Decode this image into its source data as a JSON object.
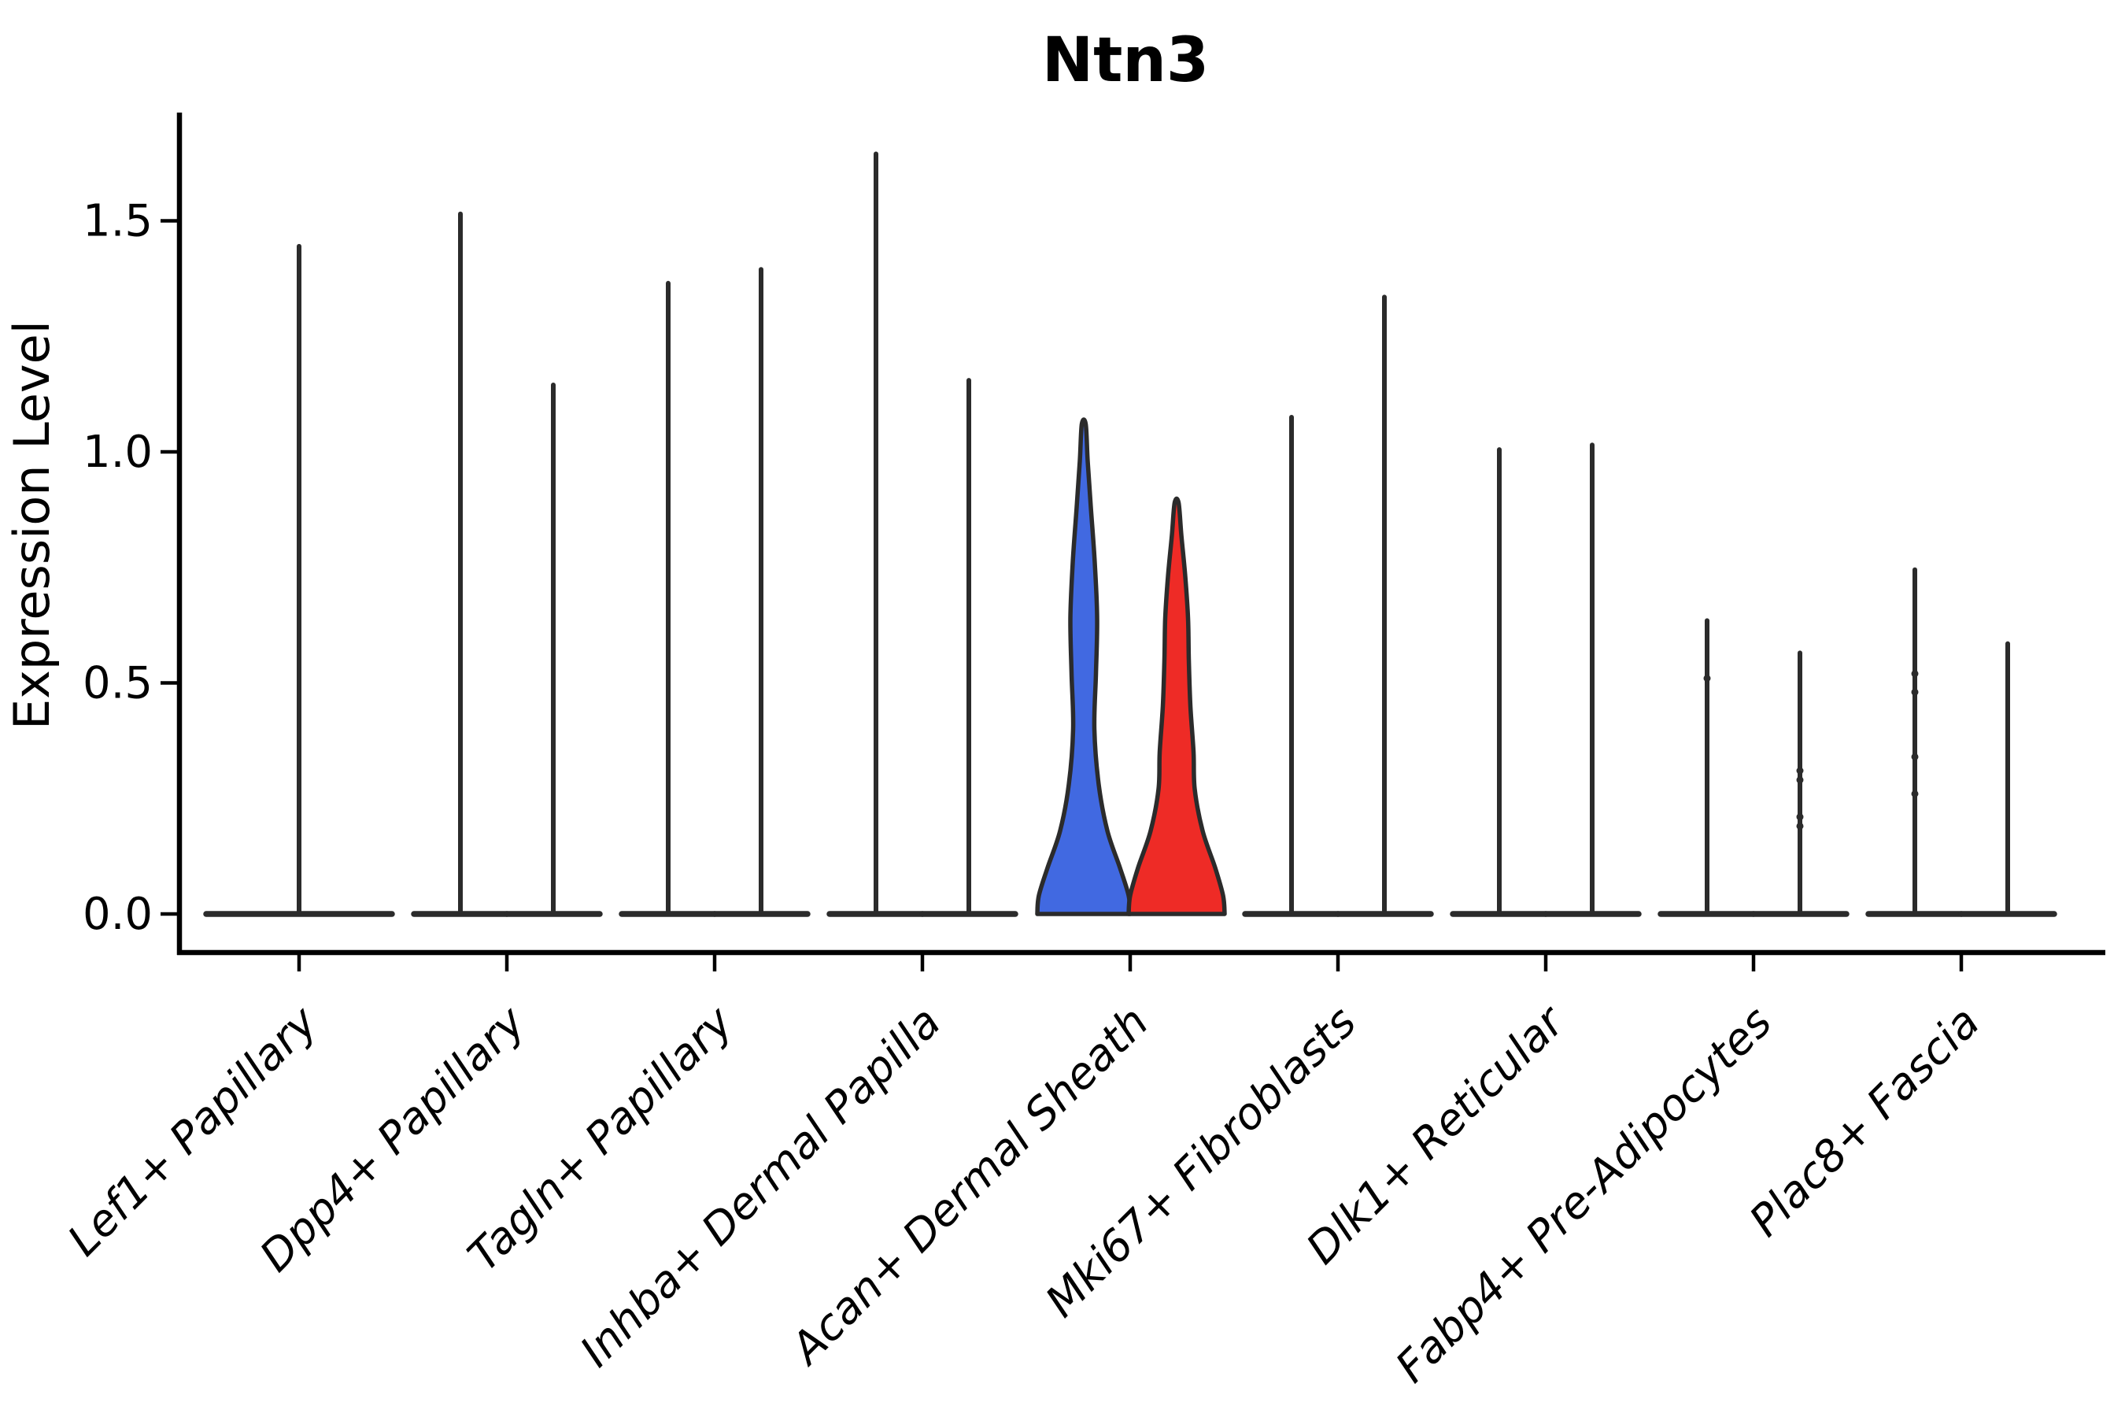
{
  "title": "Ntn3",
  "y_axis": {
    "label": "Expression Level",
    "tick_labels": [
      "0.0",
      "0.5",
      "1.0",
      "1.5"
    ]
  },
  "colors": {
    "group1_fill": "#4169E1",
    "group2_fill": "#EE2B26",
    "violin_outline": "#2b2b2b",
    "axis": "#000000",
    "background": "#ffffff"
  },
  "chart_data": {
    "type": "violin",
    "title": "Ntn3",
    "xlabel": "",
    "ylabel": "Expression Level",
    "ylim": [
      -0.09,
      1.72
    ],
    "yticks": [
      0.0,
      0.5,
      1.0,
      1.5
    ],
    "grid": false,
    "legend": "none",
    "split_groups": 2,
    "categories": [
      "Lef1+ Papillary",
      "Dpp4+ Papillary",
      "Tagln+ Papillary",
      "Inhba+ Dermal Papilla",
      "Acan+ Dermal Sheath",
      "Mki67+ Fibroblasts",
      "Dlk1+ Reticular",
      "Fabp4+ Pre-Adipocytes",
      "Plac8+ Fascia"
    ],
    "violins": [
      {
        "category": 0,
        "slot": "full",
        "kind": "spike",
        "max": 1.45,
        "fill": "none"
      },
      {
        "category": 1,
        "slot": "left",
        "kind": "spike",
        "max": 1.52,
        "fill": "none"
      },
      {
        "category": 1,
        "slot": "right",
        "kind": "spike",
        "max": 1.15,
        "fill": "none"
      },
      {
        "category": 2,
        "slot": "left",
        "kind": "spike",
        "max": 1.37,
        "fill": "none"
      },
      {
        "category": 2,
        "slot": "right",
        "kind": "spike",
        "max": 1.4,
        "fill": "none"
      },
      {
        "category": 3,
        "slot": "left",
        "kind": "spike",
        "max": 1.65,
        "fill": "none"
      },
      {
        "category": 3,
        "slot": "right",
        "kind": "spike",
        "max": 1.16,
        "fill": "none"
      },
      {
        "category": 4,
        "slot": "left",
        "kind": "shaped",
        "max": 1.06,
        "fill": "#4169E1",
        "profile": [
          [
            0,
            59
          ],
          [
            0.04,
            57
          ],
          [
            0.1,
            46
          ],
          [
            0.18,
            30
          ],
          [
            0.28,
            19
          ],
          [
            0.4,
            13.5
          ],
          [
            0.52,
            15.5
          ],
          [
            0.64,
            17
          ],
          [
            0.76,
            14
          ],
          [
            0.88,
            9
          ],
          [
            0.98,
            5
          ],
          [
            1.06,
            2.5
          ]
        ]
      },
      {
        "category": 4,
        "slot": "right",
        "kind": "shaped",
        "max": 0.89,
        "fill": "#EE2B26",
        "profile": [
          [
            0,
            61
          ],
          [
            0.04,
            59
          ],
          [
            0.1,
            49
          ],
          [
            0.18,
            33
          ],
          [
            0.27,
            23
          ],
          [
            0.35,
            21.5
          ],
          [
            0.45,
            17.5
          ],
          [
            0.55,
            15.5
          ],
          [
            0.64,
            14.5
          ],
          [
            0.73,
            11
          ],
          [
            0.82,
            6
          ],
          [
            0.89,
            2.5
          ]
        ]
      },
      {
        "category": 5,
        "slot": "left",
        "kind": "spike",
        "max": 1.08,
        "fill": "none"
      },
      {
        "category": 5,
        "slot": "right",
        "kind": "spike",
        "max": 1.34,
        "fill": "none"
      },
      {
        "category": 6,
        "slot": "left",
        "kind": "spike",
        "max": 1.01,
        "fill": "none"
      },
      {
        "category": 6,
        "slot": "right",
        "kind": "spike",
        "max": 1.02,
        "fill": "none"
      },
      {
        "category": 7,
        "slot": "left",
        "kind": "spike",
        "max": 0.64,
        "fill": "none",
        "knots": [
          0.51
        ]
      },
      {
        "category": 7,
        "slot": "right",
        "kind": "spike",
        "max": 0.57,
        "fill": "none",
        "knots": [
          0.31,
          0.29,
          0.21,
          0.19
        ]
      },
      {
        "category": 8,
        "slot": "left",
        "kind": "spike",
        "max": 0.75,
        "fill": "none",
        "knots": [
          0.52,
          0.48,
          0.34,
          0.26
        ]
      },
      {
        "category": 8,
        "slot": "right",
        "kind": "spike",
        "max": 0.59,
        "fill": "none"
      }
    ]
  }
}
